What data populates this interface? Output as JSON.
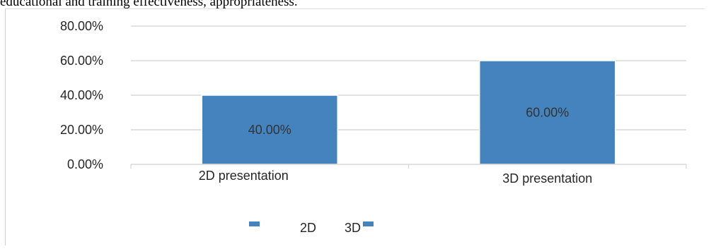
{
  "caption": "educational and training effectiveness, appropriateness.",
  "chart_data": {
    "type": "bar",
    "categories": [
      "2D presentation",
      "3D presentation"
    ],
    "values": [
      40.0,
      60.0
    ],
    "data_labels": [
      "40.00%",
      "60.00%"
    ],
    "ylim": [
      0,
      80
    ],
    "yticks": [
      0,
      20,
      40,
      60,
      80
    ],
    "ytick_labels": [
      "0.00%",
      "20.00%",
      "40.00%",
      "60.00%",
      "80.00%"
    ],
    "grid": true,
    "legend_position": "bottom",
    "legend": [
      "2D",
      "3D"
    ],
    "bar_color": "#4583bf",
    "grid_color": "#d9d9d9"
  }
}
